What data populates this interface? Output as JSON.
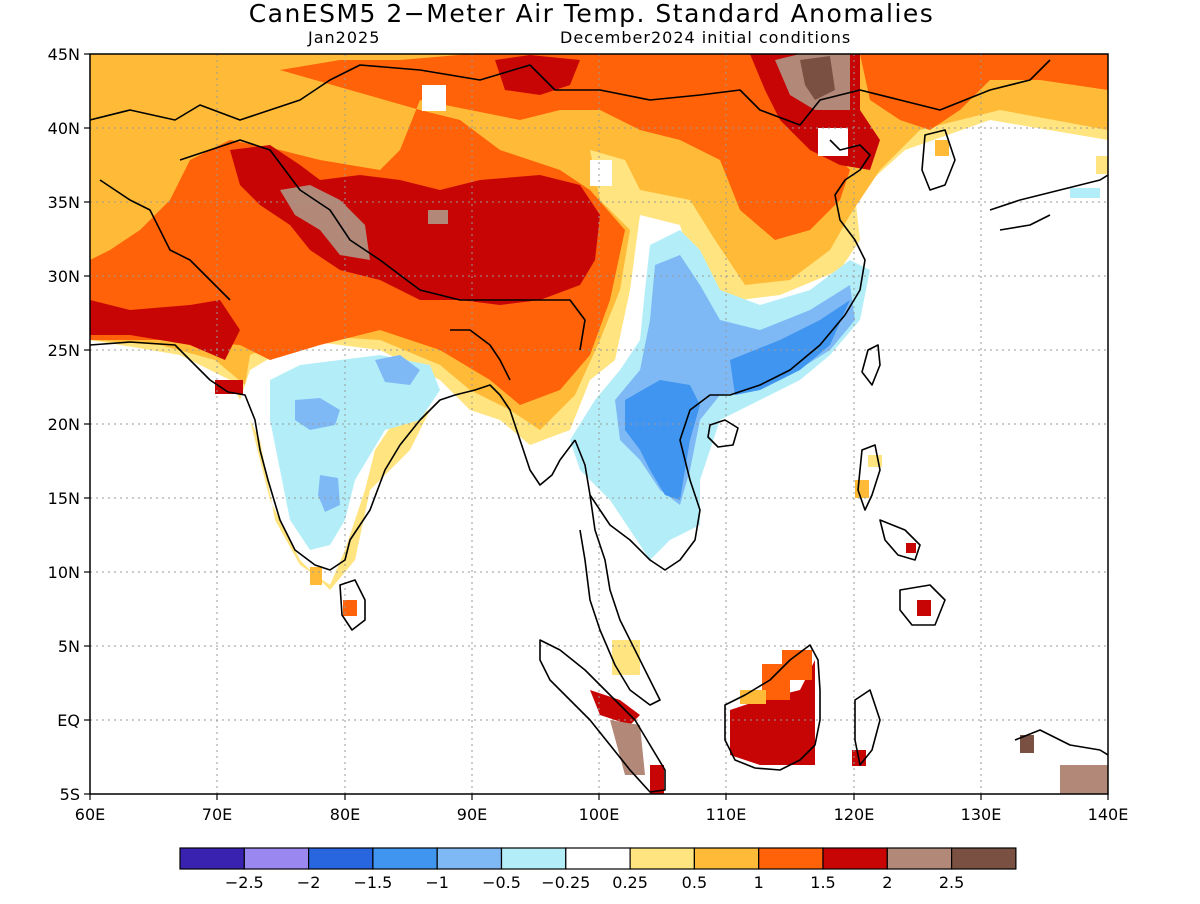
{
  "title": "CanESM5 2−Meter Air Temp. Standard Anomalies",
  "valid_month": "Jan2025",
  "init_conditions": "December2024 initial conditions",
  "lat_ticks": [
    "45N",
    "40N",
    "35N",
    "30N",
    "25N",
    "20N",
    "15N",
    "10N",
    "5N",
    "EQ",
    "5S"
  ],
  "lon_ticks": [
    "60E",
    "70E",
    "80E",
    "90E",
    "100E",
    "110E",
    "120E",
    "130E",
    "140E"
  ],
  "colorbar": {
    "colors": [
      "#3a22b0",
      "#9a88f0",
      "#2866e0",
      "#3f95f0",
      "#7fb9f5",
      "#b3eef8",
      "#ffffff",
      "#ffe480",
      "#ffbb38",
      "#ff6208",
      "#c80505",
      "#b28878",
      "#7a5042"
    ],
    "labels": [
      "−2.5",
      "−2",
      "−1.5",
      "−1",
      "−0.5",
      "−0.25",
      "0.25",
      "0.5",
      "1",
      "1.5",
      "2",
      "2.5"
    ]
  },
  "colors": {
    "land_outline": "#000000",
    "grid": "#999999"
  }
}
